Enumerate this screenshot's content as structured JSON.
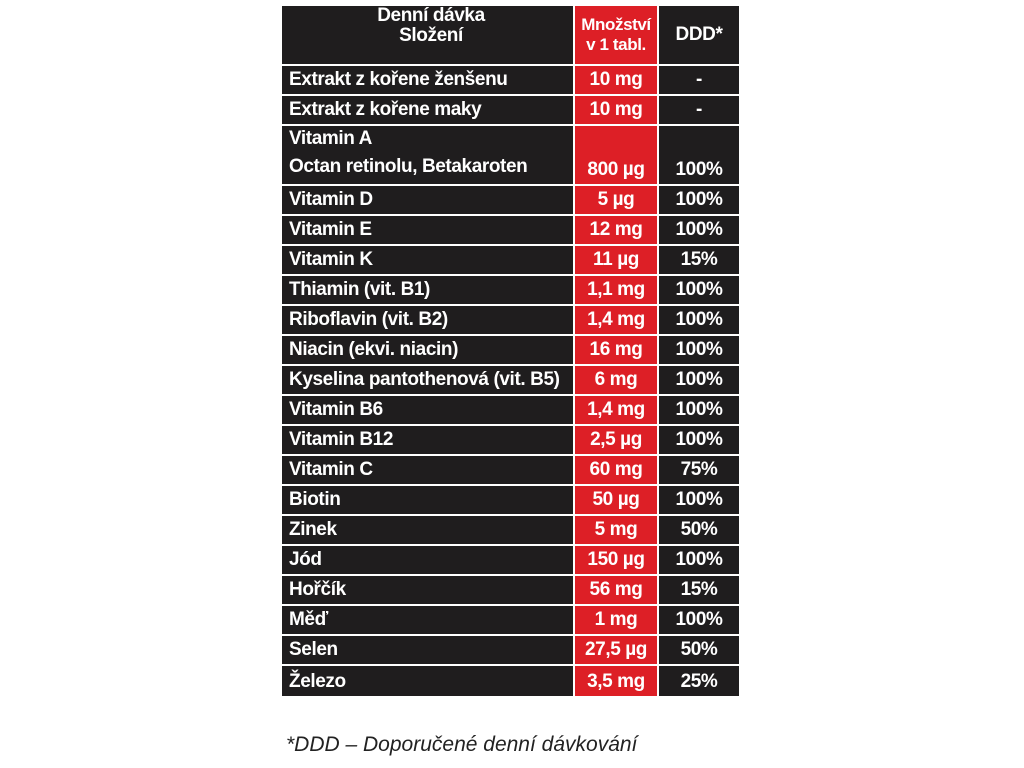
{
  "table": {
    "header": {
      "name_line1": "Denní dávka",
      "name_line2": "Složení",
      "qty_line1": "Množství",
      "qty_line2": "v 1 tabl.",
      "ddd": "DDD*"
    },
    "rows": [
      {
        "name": "Extrakt z kořene ženšenu",
        "qty": "10 mg",
        "ddd": "-"
      },
      {
        "name": "Extrakt z kořene maky",
        "qty": "10 mg",
        "ddd": "-"
      },
      {
        "name": "Vitamin A",
        "name2": "Octan retinolu, Betakaroten",
        "qty": "800 µg",
        "ddd": "100%"
      },
      {
        "name": "Vitamin D",
        "qty": "5 µg",
        "ddd": "100%"
      },
      {
        "name": "Vitamin E",
        "qty": "12 mg",
        "ddd": "100%"
      },
      {
        "name": "Vitamin K",
        "qty": "11 µg",
        "ddd": "15%"
      },
      {
        "name": "Thiamin (vit. B1)",
        "qty": "1,1 mg",
        "ddd": "100%"
      },
      {
        "name": "Riboflavin (vit. B2)",
        "qty": "1,4 mg",
        "ddd": "100%"
      },
      {
        "name": "Niacin (ekvi. niacin)",
        "qty": "16 mg",
        "ddd": "100%"
      },
      {
        "name": "Kyselina pantothenová (vit. B5)",
        "qty": "6 mg",
        "ddd": "100%"
      },
      {
        "name": "Vitamin B6",
        "qty": "1,4 mg",
        "ddd": "100%"
      },
      {
        "name": "Vitamin B12",
        "qty": "2,5 µg",
        "ddd": "100%"
      },
      {
        "name": "Vitamin C",
        "qty": "60 mg",
        "ddd": "75%"
      },
      {
        "name": "Biotin",
        "qty": "50 µg",
        "ddd": "100%"
      },
      {
        "name": "Zinek",
        "qty": "5 mg",
        "ddd": "50%"
      },
      {
        "name": "Jód",
        "qty": "150 µg",
        "ddd": "100%"
      },
      {
        "name": "Hořčík",
        "qty": "56 mg",
        "ddd": "15%"
      },
      {
        "name": "Měď",
        "qty": "1 mg",
        "ddd": "100%"
      },
      {
        "name": "Selen",
        "qty": "27,5 µg",
        "ddd": "50%"
      },
      {
        "name": "Železo",
        "qty": "3,5 mg",
        "ddd": "25%"
      }
    ]
  },
  "footnote": "*DDD – Doporučené denní dávkování"
}
